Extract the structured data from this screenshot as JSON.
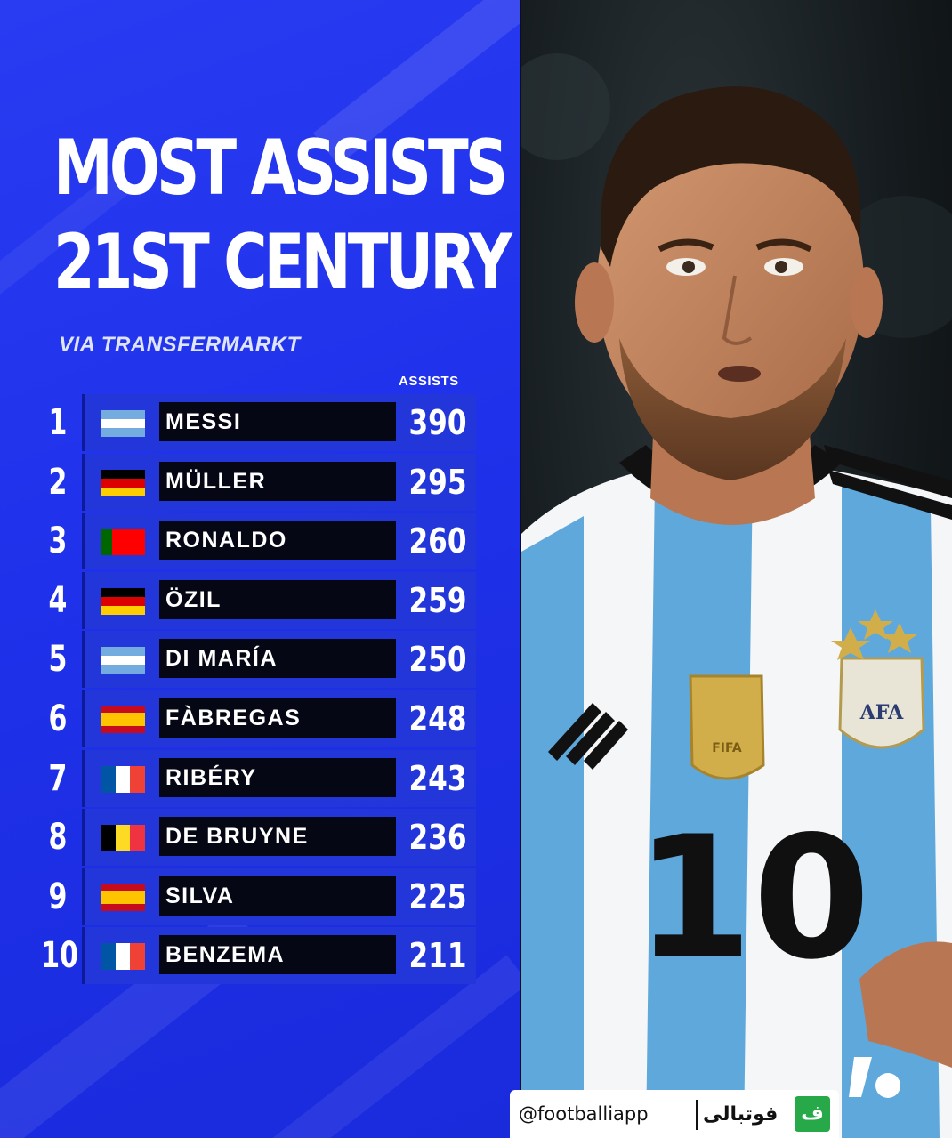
{
  "title_line1": "MOST ASSISTS",
  "title_line2": "21ST CENTURY",
  "subtitle": "VIA TRANSFERMARKT",
  "column_header": "ASSISTS",
  "rows": [
    {
      "rank": "1",
      "name": "MESSI",
      "assists": "390",
      "flag": "argentina"
    },
    {
      "rank": "2",
      "name": "MÜLLER",
      "assists": "295",
      "flag": "germany"
    },
    {
      "rank": "3",
      "name": "RONALDO",
      "assists": "260",
      "flag": "portugal"
    },
    {
      "rank": "4",
      "name": "ÖZIL",
      "assists": "259",
      "flag": "germany"
    },
    {
      "rank": "5",
      "name": "DI MARÍA",
      "assists": "250",
      "flag": "argentina"
    },
    {
      "rank": "6",
      "name": "FÀBREGAS",
      "assists": "248",
      "flag": "spain"
    },
    {
      "rank": "7",
      "name": "RIBÉRY",
      "assists": "243",
      "flag": "france"
    },
    {
      "rank": "8",
      "name": "DE BRUYNE",
      "assists": "236",
      "flag": "belgium"
    },
    {
      "rank": "9",
      "name": "SILVA",
      "assists": "225",
      "flag": "spain"
    },
    {
      "rank": "10",
      "name": "BENZEMA",
      "assists": "211",
      "flag": "france"
    }
  ],
  "jersey_number": "10",
  "crest_text": "AFA",
  "badge_text": "FIFA",
  "watermark": {
    "handle": "@footballiapp",
    "brand": "فوتبالی",
    "icon_letter": "ف"
  },
  "colors": {
    "background": "#1d2fe6",
    "row_bar": "#2236d9",
    "name_box": "#050814",
    "brand_green": "#27a94a"
  }
}
